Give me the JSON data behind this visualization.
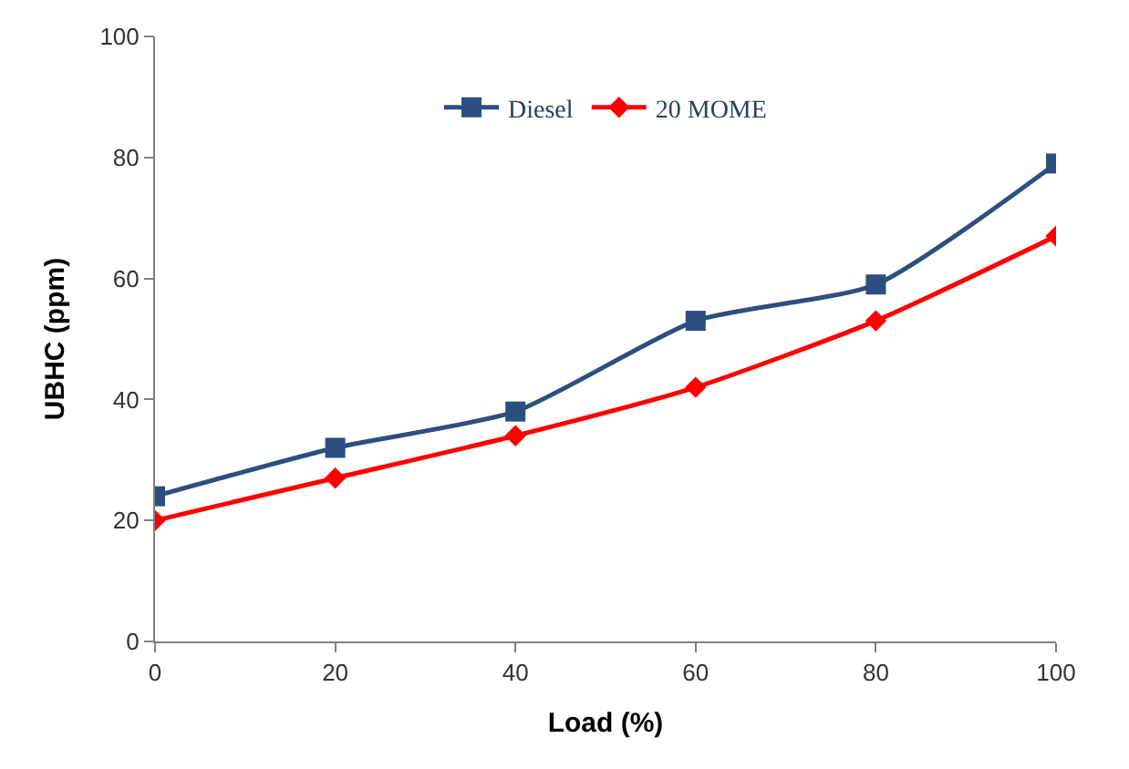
{
  "chart_data": {
    "type": "line",
    "xlabel": "Load (%)",
    "ylabel": "UBHC (ppm)",
    "x": [
      0,
      20,
      40,
      60,
      80,
      100
    ],
    "series": [
      {
        "name": "Diesel",
        "color": "#2c4f80",
        "marker": "square",
        "values": [
          24,
          32,
          38,
          53,
          59,
          79
        ]
      },
      {
        "name": "20 MOME",
        "color": "#ff0000",
        "marker": "diamond",
        "values": [
          20,
          27,
          34,
          42,
          53,
          67
        ]
      }
    ],
    "xlim": [
      0,
      100
    ],
    "xticks": [
      0,
      20,
      40,
      60,
      80,
      100
    ],
    "ylim": [
      0,
      100
    ],
    "yticks": [
      0,
      20,
      40,
      60,
      80,
      100
    ],
    "legend": "top",
    "line_style": "solid"
  }
}
